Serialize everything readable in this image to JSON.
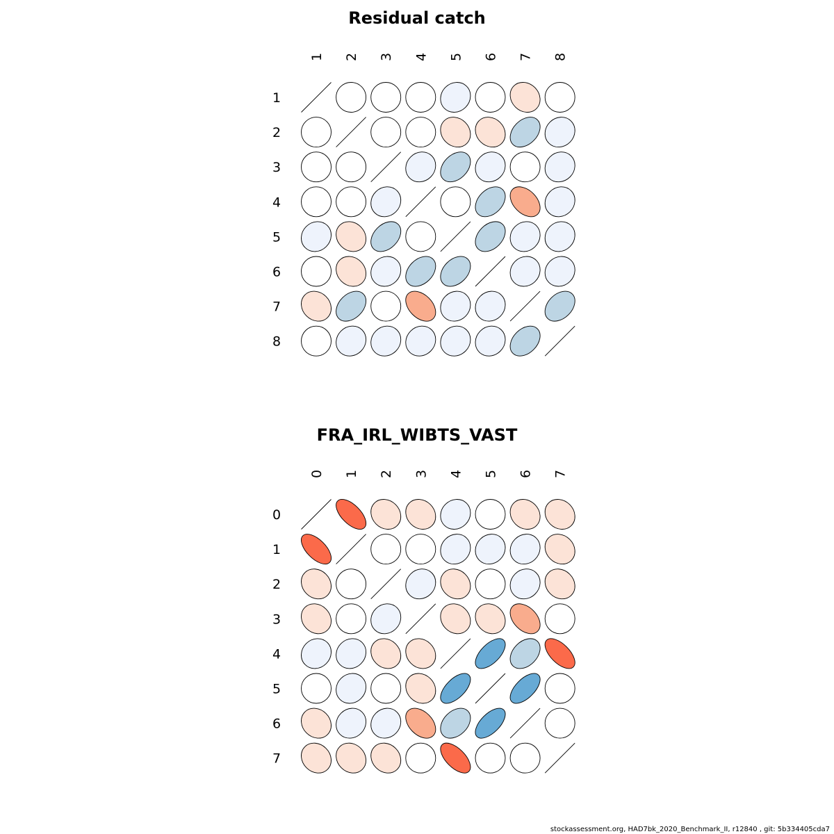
{
  "footer": "stockassessment.org, HAD7bk_2020_Benchmark_II, r12840 , git: 5b334405cda7",
  "chart_data": [
    {
      "type": "heatmap",
      "title": "Residual catch",
      "labels": [
        "1",
        "2",
        "3",
        "4",
        "5",
        "6",
        "7",
        "8"
      ],
      "matrix": [
        [
          1.0,
          0.0,
          0.0,
          0.0,
          0.1,
          0.0,
          -0.15,
          0.0
        ],
        [
          0.0,
          1.0,
          0.0,
          0.0,
          -0.15,
          -0.15,
          0.35,
          0.1
        ],
        [
          0.0,
          0.0,
          1.0,
          0.1,
          0.35,
          0.1,
          0.0,
          0.1
        ],
        [
          0.0,
          0.0,
          0.1,
          1.0,
          0.0,
          0.35,
          -0.4,
          0.1
        ],
        [
          0.1,
          -0.15,
          0.35,
          0.0,
          1.0,
          0.35,
          0.1,
          0.1
        ],
        [
          0.0,
          -0.15,
          0.1,
          0.35,
          0.35,
          1.0,
          0.1,
          0.1
        ],
        [
          -0.15,
          0.35,
          0.0,
          -0.4,
          0.1,
          0.1,
          1.0,
          0.35
        ],
        [
          0.0,
          0.1,
          0.1,
          0.1,
          0.1,
          0.1,
          0.35,
          1.0
        ]
      ]
    },
    {
      "type": "heatmap",
      "title": "FRA_IRL_WIBTS_VAST",
      "labels": [
        "0",
        "1",
        "2",
        "3",
        "4",
        "5",
        "6",
        "7"
      ],
      "matrix": [
        [
          1.0,
          -0.6,
          -0.15,
          -0.15,
          0.1,
          0.0,
          -0.15,
          -0.15
        ],
        [
          -0.6,
          1.0,
          0.0,
          0.0,
          0.1,
          0.1,
          0.1,
          -0.15
        ],
        [
          -0.15,
          0.0,
          1.0,
          0.1,
          -0.15,
          0.0,
          0.1,
          -0.15
        ],
        [
          -0.15,
          0.0,
          0.1,
          1.0,
          -0.15,
          -0.15,
          -0.4,
          0.0
        ],
        [
          0.1,
          0.1,
          -0.15,
          -0.15,
          1.0,
          0.6,
          0.35,
          -0.6
        ],
        [
          0.0,
          0.1,
          0.0,
          -0.15,
          0.6,
          1.0,
          0.6,
          0.0
        ],
        [
          -0.15,
          0.1,
          0.1,
          -0.4,
          0.35,
          0.6,
          1.0,
          0.0
        ],
        [
          -0.15,
          -0.15,
          -0.15,
          0.0,
          -0.6,
          0.0,
          0.0,
          1.0
        ]
      ]
    }
  ]
}
